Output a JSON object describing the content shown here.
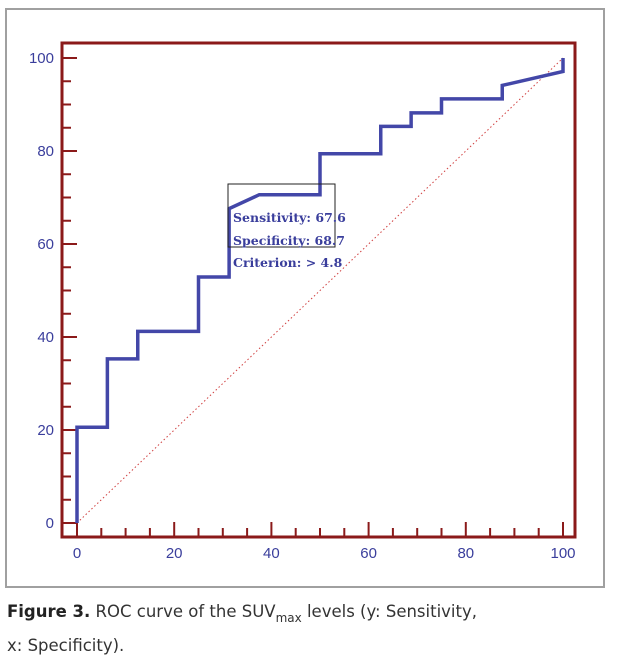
{
  "chart_data": {
    "type": "line",
    "title": "",
    "xlabel": "Specificity",
    "ylabel": "Sensitivity",
    "xlim": [
      0,
      100
    ],
    "ylim": [
      0,
      100
    ],
    "xticks": [
      "0",
      "20",
      "40",
      "60",
      "80",
      "100"
    ],
    "yticks": [
      "0",
      "20",
      "40",
      "60",
      "80",
      "100"
    ],
    "grid": false,
    "series": [
      {
        "name": "ROC curve",
        "color": "#4347a8",
        "x": [
          0,
          0,
          6.25,
          6.25,
          12.5,
          12.5,
          25,
          25,
          31.3,
          31.3,
          37.5,
          50,
          50,
          62.5,
          62.5,
          68.75,
          68.75,
          75,
          75,
          87.5,
          87.5,
          100,
          100
        ],
        "y": [
          0,
          20.6,
          20.6,
          35.3,
          35.3,
          41.2,
          41.2,
          52.9,
          52.9,
          67.6,
          70.6,
          70.6,
          79.4,
          79.4,
          85.3,
          85.3,
          88.2,
          88.2,
          91.2,
          91.2,
          94.1,
          97.1,
          100
        ]
      },
      {
        "name": "Reference line",
        "color": "#d04040",
        "x": [
          0,
          100
        ],
        "y": [
          0,
          100
        ]
      }
    ],
    "annotation": {
      "lines": [
        "Sensitivity: 67.6",
        "Specificity: 68.7",
        "Criterion: > 4.8"
      ]
    },
    "frame_color": "#8b1a1a"
  },
  "caption": {
    "label": "Figure 3.",
    "text_before": " ROC curve of the SUV",
    "subscript": "max",
    "text_after": " levels (y: Sensitivity,",
    "line2": "x: Specificity)."
  }
}
